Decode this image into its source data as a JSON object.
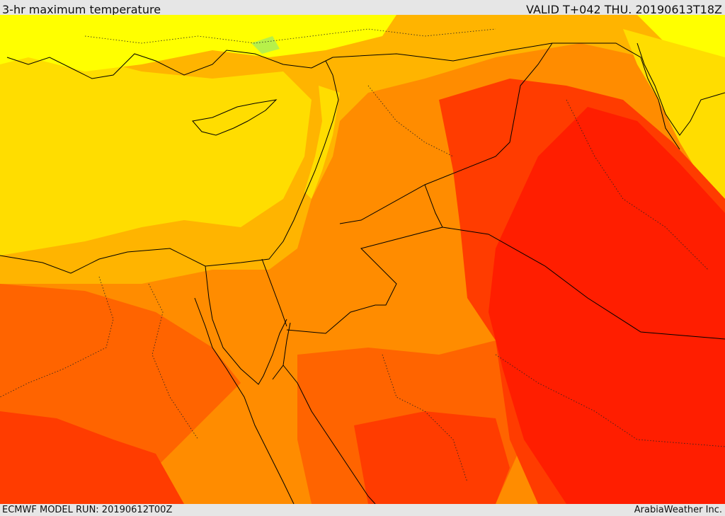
{
  "header": {
    "title": "3-hr maximum temperature",
    "valid": "VALID T+042 THU. 20190613T18Z"
  },
  "footer": {
    "model_run": "ECMWF MODEL RUN: 20190612T00Z",
    "credit": "ArabiaWeather Inc."
  },
  "map": {
    "field": "3-hr maximum temperature",
    "palette": {
      "cool_green": "#b7f04a",
      "light_yellow": "#ffff00",
      "yellow": "#ffdd00",
      "gold": "#ffb400",
      "light_orange": "#ff8c00",
      "orange": "#ff6400",
      "red_orange": "#ff3c00",
      "red": "#ff1e00"
    },
    "line_colors": {
      "coast": "#000000",
      "border": "#000000"
    }
  }
}
